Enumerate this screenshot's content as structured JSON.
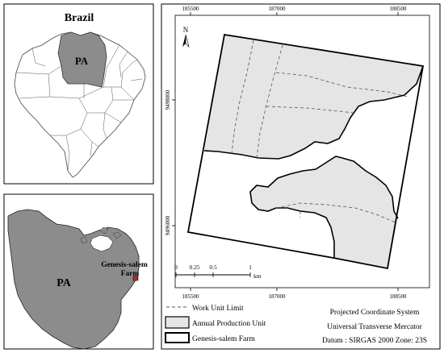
{
  "inset_brazil": {
    "title": "Brazil",
    "state_label": "PA"
  },
  "inset_para": {
    "state_label": "PA",
    "farm_label_line1": "Genesis-salem",
    "farm_label_line2": "Farm"
  },
  "main_map": {
    "top_ticks": [
      "185500",
      "187000",
      "188500"
    ],
    "bottom_ticks": [
      "185500",
      "187000",
      "188500"
    ],
    "left_ticks": [
      "9498000",
      "9496000"
    ],
    "north_label": "N",
    "scale_ticks": [
      "0",
      "0.25",
      "0.5",
      "1"
    ],
    "scale_unit": "km"
  },
  "legend": {
    "items": [
      {
        "label": "Work Unit Limit",
        "symbol": "dashed-line"
      },
      {
        "label": "Annual Production Unit",
        "symbol": "gray-fill"
      },
      {
        "label": "Genesis-salem Farm",
        "symbol": "outline"
      }
    ],
    "projection_lines": [
      "Projected Coordinate System",
      "Universal Transverse Mercator",
      "Datum : SIRGAS 2000 Zone: 23S"
    ]
  },
  "colors": {
    "state_fill": "#8c8c8c",
    "apu_fill": "#e5e5e5",
    "highlight": "#cc2222"
  }
}
